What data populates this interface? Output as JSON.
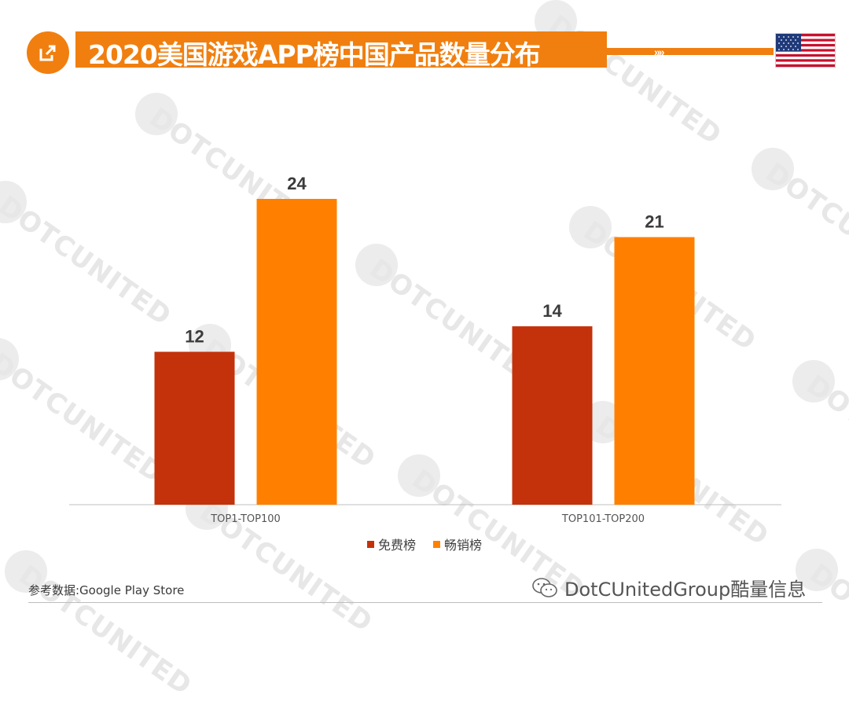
{
  "header": {
    "title": "2020美国游戏APP榜中国产品数量分布",
    "icon": "external-link-icon",
    "flag": "us-flag-icon",
    "chevrons": "»»",
    "accent_color": "#f07f0f"
  },
  "watermark": {
    "text": "DOTCUNITED"
  },
  "chart_data": {
    "type": "bar",
    "categories": [
      "TOP1-TOP100",
      "TOP101-TOP200"
    ],
    "series": [
      {
        "name": "免费榜",
        "values": [
          12,
          14
        ],
        "color": "#c3320b"
      },
      {
        "name": "畅销榜",
        "values": [
          24,
          21
        ],
        "color": "#ff8000"
      }
    ],
    "ylim": [
      0,
      27
    ],
    "grid": false,
    "data_labels": true,
    "legend": "bottom-center"
  },
  "footer": {
    "source": "参考数据:Google  Play Store",
    "brand": "DotCUnitedGroup酷量信息"
  }
}
